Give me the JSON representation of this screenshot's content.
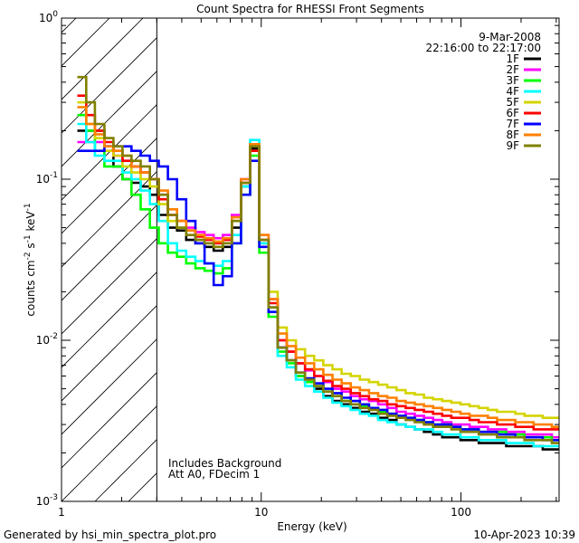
{
  "chart_data": {
    "type": "line",
    "title": "Count Spectra for RHESSI Front Segments",
    "xlabel": "Energy (keV)",
    "ylabel_base": "counts cm",
    "ylabel_parts": [
      "-2",
      " s",
      "-1",
      " keV",
      "-1"
    ],
    "xscale": "log",
    "yscale": "log",
    "xlim": [
      1,
      310
    ],
    "ylim": [
      0.001,
      1.0
    ],
    "x_ticks": [
      {
        "value": 1,
        "label": "1"
      },
      {
        "value": 10,
        "label": "10"
      },
      {
        "value": 100,
        "label": "100"
      }
    ],
    "y_ticks": [
      {
        "value": 1.0,
        "base": "10",
        "exp": "0"
      },
      {
        "value": 0.1,
        "base": "10",
        "exp": "-1"
      },
      {
        "value": 0.01,
        "base": "10",
        "exp": "-2"
      },
      {
        "value": 0.001,
        "base": "10",
        "exp": "-3"
      }
    ],
    "attenuator_edge_kev": 3.0,
    "date": "9-Mar-2008",
    "time_range": "22:16:00 to 22:17:00",
    "annotations": [
      "Includes Background",
      "Att A0, FDecim 1"
    ],
    "footer_left": "Generated by hsi_min_spectra_plot.pro",
    "footer_right": "10-Apr-2023 10:39",
    "energy_edges": [
      1.2,
      1.33,
      1.47,
      1.64,
      1.82,
      2.02,
      2.24,
      2.49,
      2.77,
      3.07,
      3.41,
      3.79,
      4.21,
      4.68,
      5.2,
      5.78,
      6.42,
      7.13,
      7.92,
      8.8,
      9.78,
      10.87,
      12.08,
      13.42,
      14.91,
      16.57,
      18.41,
      20.46,
      22.73,
      25.26,
      28.07,
      31.19,
      34.66,
      38.51,
      42.79,
      47.55,
      52.84,
      58.71,
      65.24,
      72.49,
      80.55,
      89.5,
      99.45,
      110.5,
      122.8,
      136.4,
      151.6,
      168.4,
      187.1,
      207.9,
      231.0,
      256.7,
      285.2,
      316.9
    ],
    "series": [
      {
        "name": "1F",
        "color": "#000000",
        "values": [
          0.2,
          0.2,
          0.2,
          0.16,
          0.12,
          0.1,
          0.095,
          0.09,
          0.08,
          0.06,
          0.05,
          0.048,
          0.042,
          0.04,
          0.038,
          0.036,
          0.038,
          0.05,
          0.09,
          0.155,
          0.04,
          0.016,
          0.009,
          0.0075,
          0.006,
          0.0055,
          0.005,
          0.0045,
          0.0042,
          0.004,
          0.0038,
          0.0036,
          0.0035,
          0.0033,
          0.0032,
          0.003,
          0.0029,
          0.0028,
          0.0027,
          0.0026,
          0.0025,
          0.0025,
          0.0024,
          0.0024,
          0.0023,
          0.0023,
          0.0023,
          0.0022,
          0.0022,
          0.0022,
          0.0022,
          0.0021,
          0.0021
        ]
      },
      {
        "name": "2F",
        "color": "#ff00ff",
        "values": [
          0.17,
          0.17,
          0.17,
          0.15,
          0.14,
          0.13,
          0.12,
          0.11,
          0.1,
          0.08,
          0.06,
          0.055,
          0.05,
          0.047,
          0.045,
          0.043,
          0.045,
          0.06,
          0.1,
          0.165,
          0.045,
          0.018,
          0.01,
          0.0085,
          0.0072,
          0.0065,
          0.006,
          0.0055,
          0.005,
          0.0048,
          0.0045,
          0.0043,
          0.0042,
          0.004,
          0.0038,
          0.0036,
          0.0035,
          0.0034,
          0.0033,
          0.0032,
          0.0031,
          0.003,
          0.003,
          0.0029,
          0.0029,
          0.0028,
          0.0028,
          0.0027,
          0.0027,
          0.0026,
          0.0026,
          0.0026,
          0.0025
        ]
      },
      {
        "name": "3F",
        "color": "#00ff00",
        "values": [
          0.25,
          0.2,
          0.15,
          0.12,
          0.12,
          0.1,
          0.08,
          0.065,
          0.05,
          0.04,
          0.035,
          0.033,
          0.03,
          0.028,
          0.027,
          0.026,
          0.028,
          0.04,
          0.08,
          0.14,
          0.035,
          0.014,
          0.0085,
          0.0072,
          0.006,
          0.0055,
          0.0052,
          0.0048,
          0.0045,
          0.0042,
          0.004,
          0.0039,
          0.0038,
          0.0036,
          0.0035,
          0.0034,
          0.0033,
          0.0032,
          0.0031,
          0.003,
          0.003,
          0.0029,
          0.0028,
          0.0028,
          0.0027,
          0.0027,
          0.0027,
          0.0026,
          0.0026,
          0.0025,
          0.0025,
          0.0025,
          0.0024
        ]
      },
      {
        "name": "4F",
        "color": "#00ffff",
        "values": [
          0.22,
          0.17,
          0.14,
          0.13,
          0.13,
          0.11,
          0.1,
          0.085,
          0.07,
          0.055,
          0.04,
          0.036,
          0.033,
          0.031,
          0.03,
          0.029,
          0.031,
          0.045,
          0.09,
          0.175,
          0.04,
          0.015,
          0.008,
          0.0068,
          0.0057,
          0.0052,
          0.0048,
          0.0044,
          0.0041,
          0.0039,
          0.0037,
          0.0035,
          0.0034,
          0.0032,
          0.0031,
          0.003,
          0.0029,
          0.0028,
          0.0028,
          0.0027,
          0.0026,
          0.0026,
          0.0025,
          0.0025,
          0.0024,
          0.0024,
          0.0024,
          0.0023,
          0.0023,
          0.0023,
          0.0022,
          0.0022,
          0.0022
        ]
      },
      {
        "name": "5F",
        "color": "#d4d400",
        "values": [
          0.3,
          0.22,
          0.18,
          0.15,
          0.14,
          0.12,
          0.11,
          0.1,
          0.09,
          0.07,
          0.055,
          0.05,
          0.045,
          0.042,
          0.04,
          0.038,
          0.04,
          0.055,
          0.095,
          0.16,
          0.045,
          0.02,
          0.012,
          0.01,
          0.0088,
          0.008,
          0.0075,
          0.007,
          0.0066,
          0.0062,
          0.006,
          0.0057,
          0.0055,
          0.0053,
          0.0051,
          0.0049,
          0.0047,
          0.0046,
          0.0044,
          0.0043,
          0.0042,
          0.0041,
          0.004,
          0.0039,
          0.0038,
          0.0037,
          0.0036,
          0.0036,
          0.0035,
          0.0034,
          0.0034,
          0.0033,
          0.0033
        ]
      },
      {
        "name": "6F",
        "color": "#ff0000",
        "values": [
          0.33,
          0.25,
          0.2,
          0.17,
          0.15,
          0.13,
          0.12,
          0.11,
          0.1,
          0.075,
          0.06,
          0.055,
          0.048,
          0.044,
          0.042,
          0.04,
          0.042,
          0.055,
          0.095,
          0.15,
          0.042,
          0.017,
          0.01,
          0.0085,
          0.0072,
          0.0066,
          0.006,
          0.0056,
          0.0052,
          0.005,
          0.0047,
          0.0045,
          0.0043,
          0.0042,
          0.004,
          0.0039,
          0.0038,
          0.0037,
          0.0036,
          0.0035,
          0.0034,
          0.0033,
          0.0033,
          0.0032,
          0.0031,
          0.0031,
          0.003,
          0.003,
          0.0029,
          0.0029,
          0.0028,
          0.0028,
          0.0028
        ]
      },
      {
        "name": "7F",
        "color": "#0000ff",
        "values": [
          0.15,
          0.15,
          0.15,
          0.16,
          0.16,
          0.16,
          0.15,
          0.14,
          0.13,
          0.12,
          0.1,
          0.075,
          0.055,
          0.04,
          0.03,
          0.022,
          0.025,
          0.04,
          0.08,
          0.13,
          0.038,
          0.015,
          0.009,
          0.0075,
          0.0063,
          0.0058,
          0.0054,
          0.005,
          0.0047,
          0.0044,
          0.0042,
          0.004,
          0.0038,
          0.0037,
          0.0035,
          0.0034,
          0.0033,
          0.0032,
          0.0031,
          0.003,
          0.003,
          0.0029,
          0.0028,
          0.0028,
          0.0027,
          0.0027,
          0.0026,
          0.0026,
          0.0025,
          0.0025,
          0.0025,
          0.0024,
          0.0024
        ]
      },
      {
        "name": "8F",
        "color": "#ff8000",
        "values": [
          0.28,
          0.22,
          0.19,
          0.16,
          0.15,
          0.14,
          0.12,
          0.11,
          0.1,
          0.085,
          0.065,
          0.055,
          0.048,
          0.045,
          0.043,
          0.041,
          0.043,
          0.058,
          0.1,
          0.165,
          0.045,
          0.018,
          0.011,
          0.0092,
          0.0078,
          0.0072,
          0.0066,
          0.0061,
          0.0057,
          0.0054,
          0.0051,
          0.0049,
          0.0047,
          0.0045,
          0.0044,
          0.0042,
          0.0041,
          0.004,
          0.0039,
          0.0038,
          0.0037,
          0.0036,
          0.0035,
          0.0034,
          0.0034,
          0.0033,
          0.0032,
          0.0032,
          0.0031,
          0.0031,
          0.003,
          0.003,
          0.0029
        ]
      },
      {
        "name": "9F",
        "color": "#808000",
        "values": [
          0.43,
          0.3,
          0.22,
          0.18,
          0.16,
          0.14,
          0.13,
          0.12,
          0.1,
          0.08,
          0.06,
          0.05,
          0.045,
          0.042,
          0.04,
          0.038,
          0.04,
          0.055,
          0.095,
          0.16,
          0.042,
          0.016,
          0.009,
          0.0075,
          0.0063,
          0.0057,
          0.0052,
          0.0048,
          0.0045,
          0.0042,
          0.004,
          0.0038,
          0.0037,
          0.0035,
          0.0034,
          0.0033,
          0.0032,
          0.0031,
          0.003,
          0.0029,
          0.0029,
          0.0028,
          0.0027,
          0.0027,
          0.0026,
          0.0026,
          0.0025,
          0.0025,
          0.0025,
          0.0024,
          0.0024,
          0.0024,
          0.0023
        ]
      }
    ]
  }
}
